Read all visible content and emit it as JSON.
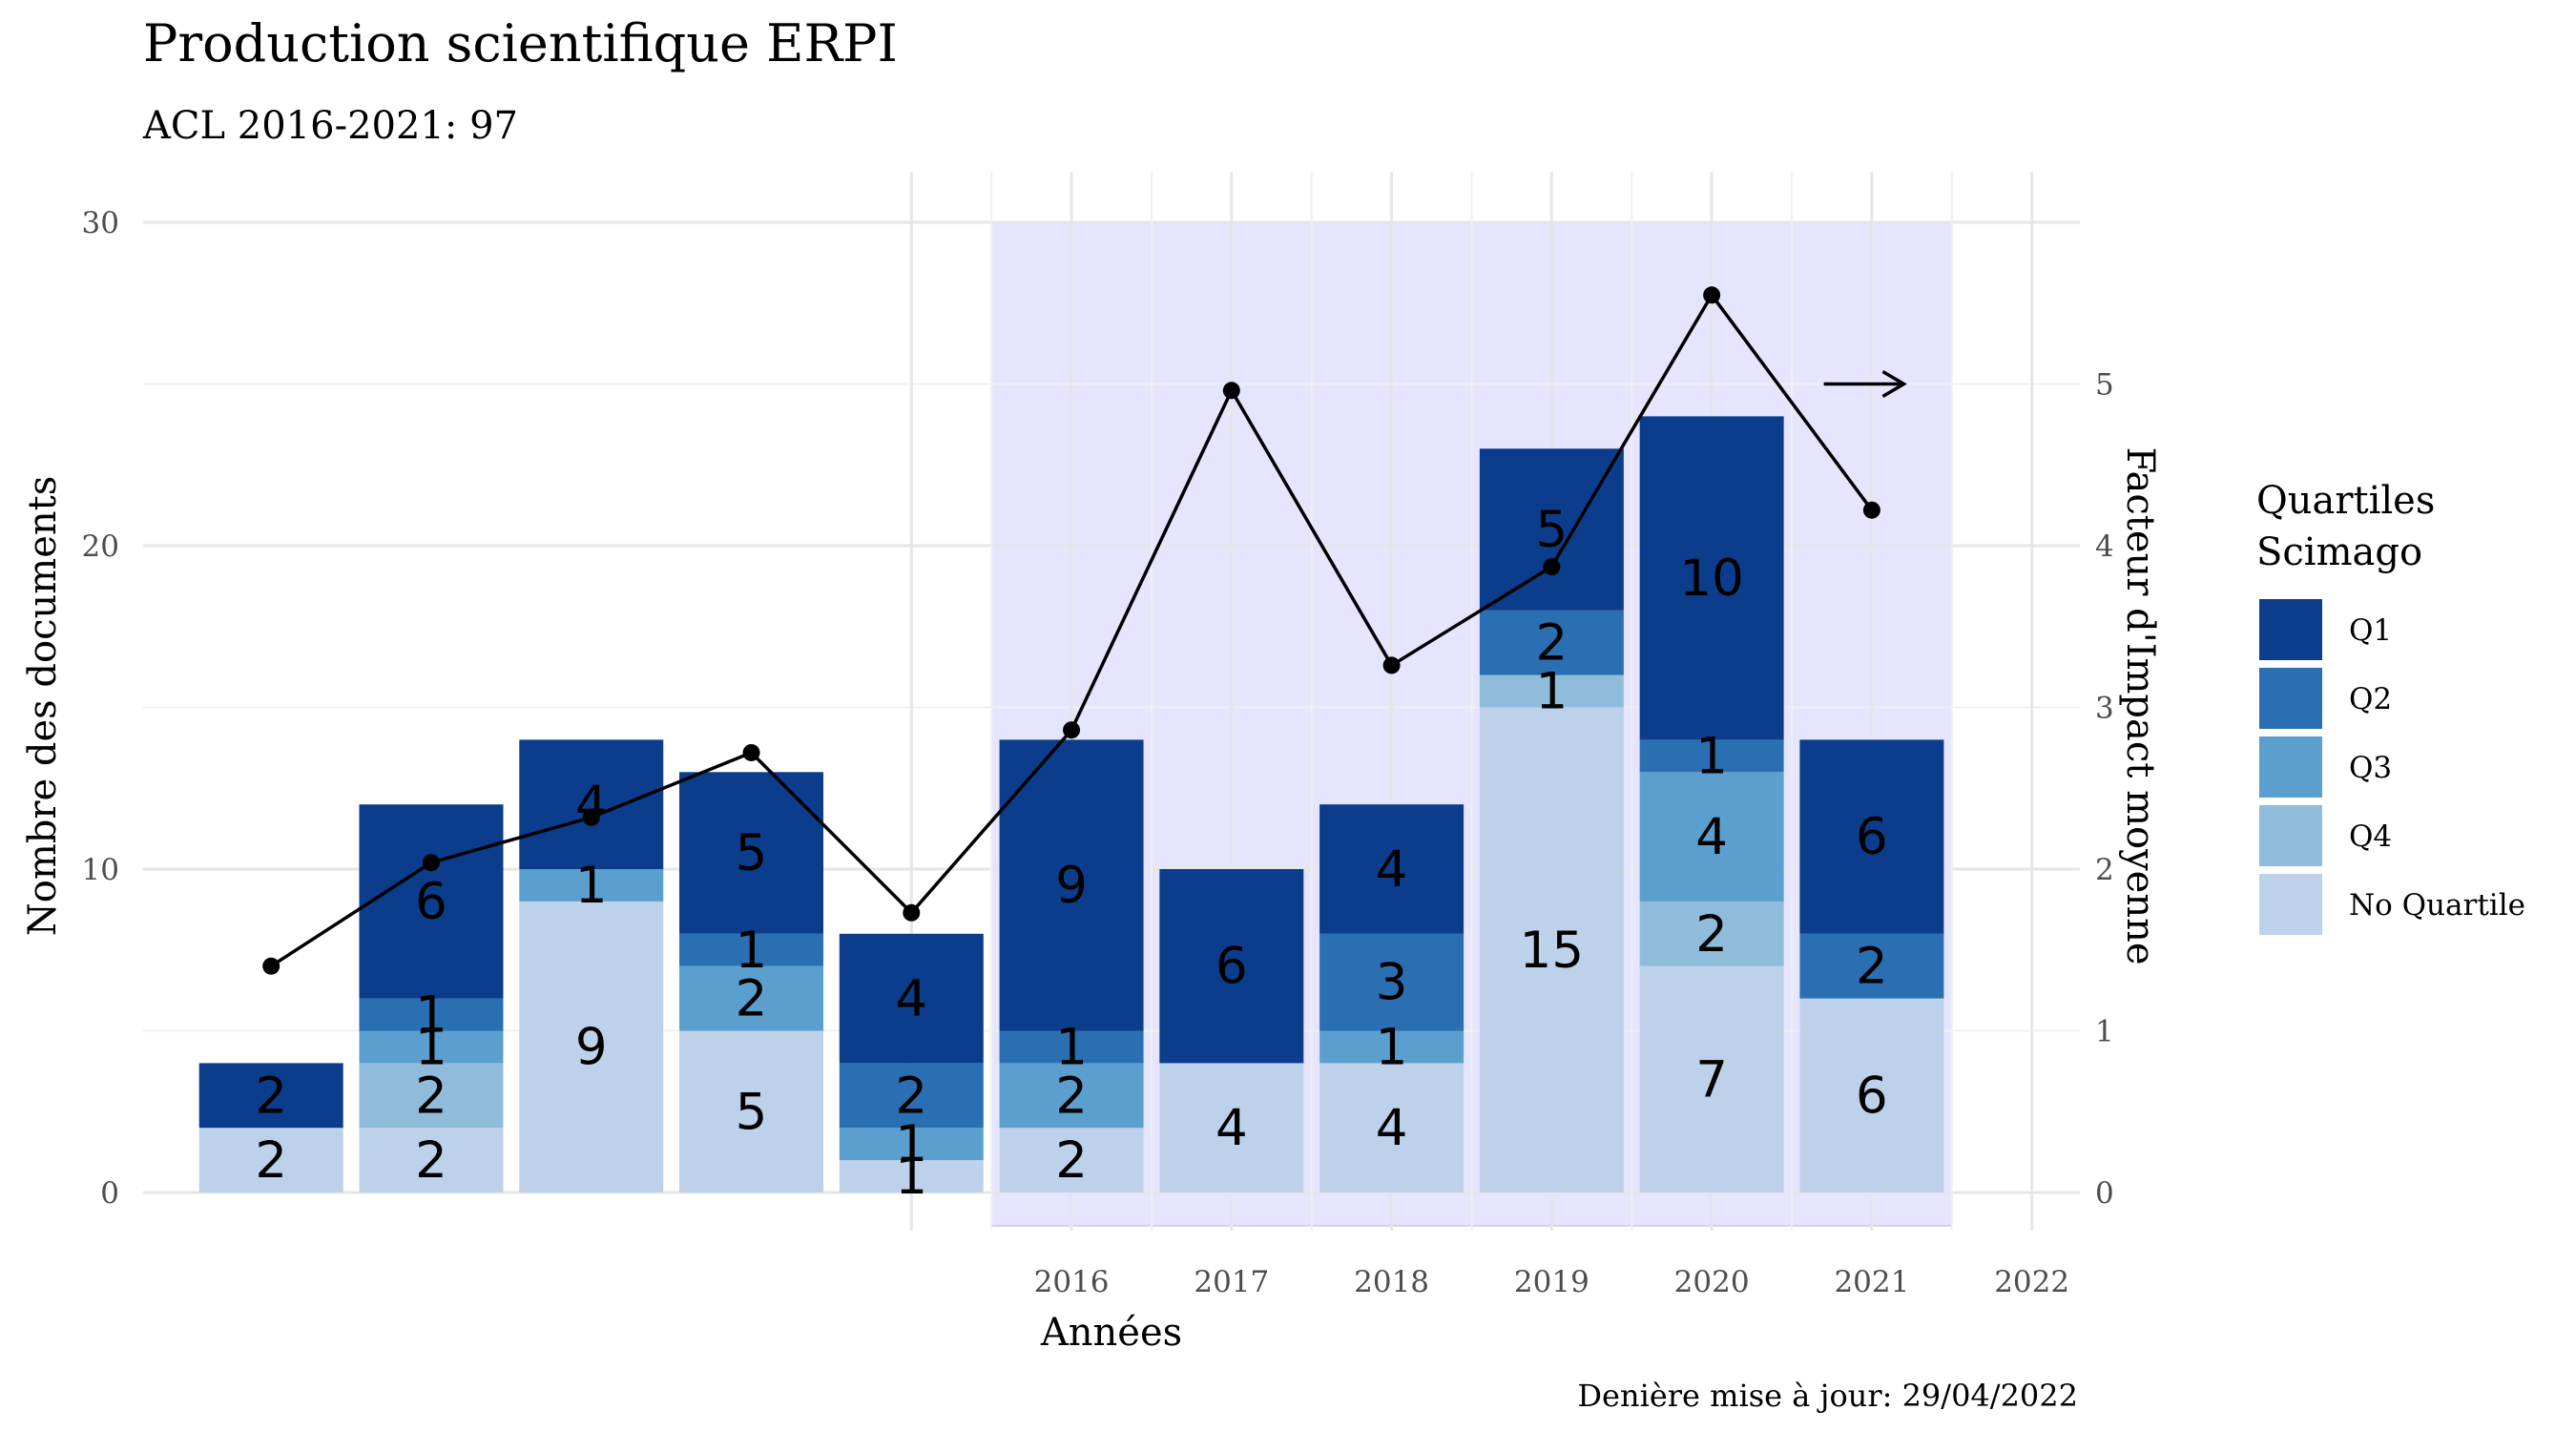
{
  "chart_data": {
    "type": "bar",
    "title": "Production scientifique ERPI",
    "subtitle": "ACL 2016-2021: 97",
    "xlabel": "Années",
    "ylabel": "Nombre des documents",
    "y2label": "Facteur d'Impact moyenne",
    "caption": "Denière mise à jour: 29/04/2022",
    "stacked": true,
    "x": [
      2011,
      2012,
      2013,
      2014,
      2015,
      2016,
      2017,
      2018,
      2019,
      2020,
      2021
    ],
    "x_tick_labels": [
      "2016",
      "2017",
      "2018",
      "2019",
      "2020",
      "2021",
      "2022"
    ],
    "x_tick_values": [
      2016,
      2017,
      2018,
      2019,
      2020,
      2021,
      2022
    ],
    "xlim": [
      2010.2,
      2022.3
    ],
    "ylim": [
      0,
      30
    ],
    "y_ticks": [
      0,
      10,
      20,
      30
    ],
    "y2lim": [
      0,
      6
    ],
    "y2_ticks": [
      0,
      1,
      2,
      3,
      4,
      5
    ],
    "highlight_range": [
      2015.5,
      2021.5
    ],
    "arrow": {
      "from": [
        2020.7,
        25
      ],
      "to": [
        2021.2,
        25
      ]
    },
    "grid": true,
    "legend": {
      "title": [
        "Quartiles",
        "Scimago"
      ],
      "position": "right"
    },
    "series": [
      {
        "name": "No Quartile",
        "color": "#bdd2ea",
        "values": [
          2,
          2,
          9,
          5,
          1,
          2,
          4,
          4,
          15,
          7,
          6
        ]
      },
      {
        "name": "Q4",
        "color": "#90bcdc",
        "values": [
          0,
          2,
          0,
          0,
          0,
          0,
          0,
          0,
          1,
          2,
          0
        ]
      },
      {
        "name": "Q3",
        "color": "#5b9fcf",
        "values": [
          0,
          1,
          1,
          2,
          1,
          2,
          0,
          1,
          0,
          4,
          0
        ]
      },
      {
        "name": "Q2",
        "color": "#2b6fb3",
        "values": [
          0,
          1,
          0,
          1,
          2,
          1,
          0,
          3,
          2,
          1,
          2
        ]
      },
      {
        "name": "Q1",
        "color": "#0c3d8c",
        "values": [
          2,
          6,
          4,
          5,
          4,
          9,
          6,
          4,
          5,
          10,
          6
        ]
      }
    ],
    "line_series": {
      "axis": "right",
      "values": [
        1.4,
        2.04,
        2.32,
        2.72,
        1.73,
        2.86,
        4.96,
        3.26,
        3.87,
        5.55,
        4.22
      ]
    }
  }
}
